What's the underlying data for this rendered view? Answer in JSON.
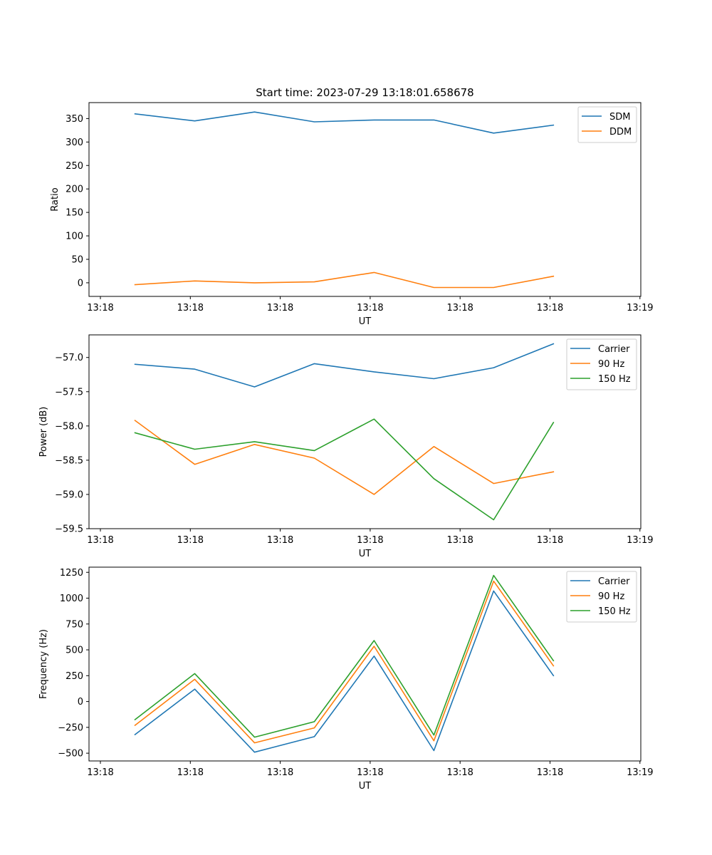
{
  "chart_data": [
    {
      "type": "line",
      "title": "Start time: 2023-07-29 13:18:01.658678",
      "xlabel": "UT",
      "ylabel": "Ratio",
      "x_ticks": [
        "13:18",
        "13:18",
        "13:18",
        "13:18",
        "13:18",
        "13:18",
        "13:19"
      ],
      "xlim": [
        0,
        12
      ],
      "x": [
        1,
        2.3,
        3.6,
        4.9,
        6.2,
        7.5,
        8.8,
        10.1
      ],
      "ylim": [
        -29,
        384
      ],
      "y_ticks": [
        0,
        50,
        100,
        150,
        200,
        250,
        300,
        350
      ],
      "legend_position": "upper right",
      "series": [
        {
          "name": "SDM",
          "color": "#1f77b4",
          "values": [
            360,
            345,
            364,
            343,
            347,
            347,
            319,
            336
          ]
        },
        {
          "name": "DDM",
          "color": "#ff7f0e",
          "values": [
            -4,
            4,
            0,
            2,
            22,
            -10,
            -10,
            14
          ]
        }
      ]
    },
    {
      "type": "line",
      "title": "",
      "xlabel": "UT",
      "ylabel": "Power (dB)",
      "x_ticks": [
        "13:18",
        "13:18",
        "13:18",
        "13:18",
        "13:18",
        "13:18",
        "13:19"
      ],
      "xlim": [
        0,
        12
      ],
      "x": [
        1,
        2.3,
        3.6,
        4.9,
        6.2,
        7.5,
        8.8,
        10.1
      ],
      "ylim": [
        -59.5,
        -56.67
      ],
      "y_ticks": [
        -59.5,
        -59.0,
        -58.5,
        -58.0,
        -57.5,
        -57.0
      ],
      "y_tick_labels": [
        "−59.5",
        "−59.0",
        "−58.5",
        "−58.0",
        "−57.5",
        "−57.0"
      ],
      "legend_position": "upper right",
      "series": [
        {
          "name": "Carrier",
          "color": "#1f77b4",
          "values": [
            -57.1,
            -57.17,
            -57.43,
            -57.09,
            -57.21,
            -57.31,
            -57.15,
            -56.8
          ]
        },
        {
          "name": "90 Hz",
          "color": "#ff7f0e",
          "values": [
            -57.92,
            -58.56,
            -58.27,
            -58.47,
            -59.0,
            -58.3,
            -58.84,
            -58.67
          ]
        },
        {
          "name": "150 Hz",
          "color": "#2ca02c",
          "values": [
            -58.1,
            -58.34,
            -58.23,
            -58.36,
            -57.9,
            -58.77,
            -59.37,
            -57.95
          ]
        }
      ]
    },
    {
      "type": "line",
      "title": "",
      "xlabel": "UT",
      "ylabel": "Frequency (Hz)",
      "x_ticks": [
        "13:18",
        "13:18",
        "13:18",
        "13:18",
        "13:18",
        "13:18",
        "13:19"
      ],
      "xlim": [
        0,
        12
      ],
      "x": [
        1,
        2.3,
        3.6,
        4.9,
        6.2,
        7.5,
        8.8,
        10.1
      ],
      "ylim": [
        -575,
        1300
      ],
      "y_ticks": [
        -500,
        -250,
        0,
        250,
        500,
        750,
        1000,
        1250
      ],
      "y_tick_labels": [
        "−500",
        "−250",
        "0",
        "250",
        "500",
        "750",
        "1000",
        "1250"
      ],
      "legend_position": "upper right",
      "series": [
        {
          "name": "Carrier",
          "color": "#1f77b4",
          "values": [
            -320,
            120,
            -490,
            -340,
            440,
            -475,
            1070,
            250
          ]
        },
        {
          "name": "90 Hz",
          "color": "#ff7f0e",
          "values": [
            -230,
            215,
            -400,
            -255,
            535,
            -380,
            1165,
            345
          ]
        },
        {
          "name": "150 Hz",
          "color": "#2ca02c",
          "values": [
            -175,
            270,
            -345,
            -195,
            590,
            -325,
            1220,
            395
          ]
        }
      ]
    }
  ]
}
